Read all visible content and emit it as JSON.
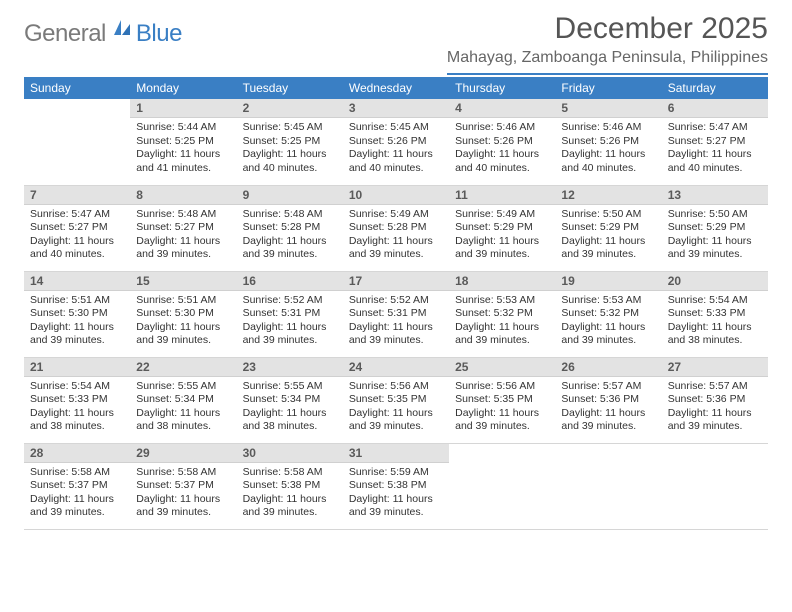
{
  "brand": {
    "name1": "General",
    "name2": "Blue"
  },
  "header": {
    "title": "December 2025",
    "location": "Mahayag, Zamboanga Peninsula, Philippines"
  },
  "colors": {
    "accent": "#3a7fc4",
    "header_text": "#ffffff",
    "body_text": "#333333",
    "muted_text": "#666666",
    "dayrow_bg": "#e3e3e3",
    "border": "#d6d6d6",
    "page_bg": "#ffffff"
  },
  "columns": [
    "Sunday",
    "Monday",
    "Tuesday",
    "Wednesday",
    "Thursday",
    "Friday",
    "Saturday"
  ],
  "weeks": [
    [
      {
        "blank": true
      },
      {
        "n": "1",
        "sr": "5:44 AM",
        "ss": "5:25 PM",
        "dl": "11 hours and 41 minutes."
      },
      {
        "n": "2",
        "sr": "5:45 AM",
        "ss": "5:25 PM",
        "dl": "11 hours and 40 minutes."
      },
      {
        "n": "3",
        "sr": "5:45 AM",
        "ss": "5:26 PM",
        "dl": "11 hours and 40 minutes."
      },
      {
        "n": "4",
        "sr": "5:46 AM",
        "ss": "5:26 PM",
        "dl": "11 hours and 40 minutes."
      },
      {
        "n": "5",
        "sr": "5:46 AM",
        "ss": "5:26 PM",
        "dl": "11 hours and 40 minutes."
      },
      {
        "n": "6",
        "sr": "5:47 AM",
        "ss": "5:27 PM",
        "dl": "11 hours and 40 minutes."
      }
    ],
    [
      {
        "n": "7",
        "sr": "5:47 AM",
        "ss": "5:27 PM",
        "dl": "11 hours and 40 minutes."
      },
      {
        "n": "8",
        "sr": "5:48 AM",
        "ss": "5:27 PM",
        "dl": "11 hours and 39 minutes."
      },
      {
        "n": "9",
        "sr": "5:48 AM",
        "ss": "5:28 PM",
        "dl": "11 hours and 39 minutes."
      },
      {
        "n": "10",
        "sr": "5:49 AM",
        "ss": "5:28 PM",
        "dl": "11 hours and 39 minutes."
      },
      {
        "n": "11",
        "sr": "5:49 AM",
        "ss": "5:29 PM",
        "dl": "11 hours and 39 minutes."
      },
      {
        "n": "12",
        "sr": "5:50 AM",
        "ss": "5:29 PM",
        "dl": "11 hours and 39 minutes."
      },
      {
        "n": "13",
        "sr": "5:50 AM",
        "ss": "5:29 PM",
        "dl": "11 hours and 39 minutes."
      }
    ],
    [
      {
        "n": "14",
        "sr": "5:51 AM",
        "ss": "5:30 PM",
        "dl": "11 hours and 39 minutes."
      },
      {
        "n": "15",
        "sr": "5:51 AM",
        "ss": "5:30 PM",
        "dl": "11 hours and 39 minutes."
      },
      {
        "n": "16",
        "sr": "5:52 AM",
        "ss": "5:31 PM",
        "dl": "11 hours and 39 minutes."
      },
      {
        "n": "17",
        "sr": "5:52 AM",
        "ss": "5:31 PM",
        "dl": "11 hours and 39 minutes."
      },
      {
        "n": "18",
        "sr": "5:53 AM",
        "ss": "5:32 PM",
        "dl": "11 hours and 39 minutes."
      },
      {
        "n": "19",
        "sr": "5:53 AM",
        "ss": "5:32 PM",
        "dl": "11 hours and 39 minutes."
      },
      {
        "n": "20",
        "sr": "5:54 AM",
        "ss": "5:33 PM",
        "dl": "11 hours and 38 minutes."
      }
    ],
    [
      {
        "n": "21",
        "sr": "5:54 AM",
        "ss": "5:33 PM",
        "dl": "11 hours and 38 minutes."
      },
      {
        "n": "22",
        "sr": "5:55 AM",
        "ss": "5:34 PM",
        "dl": "11 hours and 38 minutes."
      },
      {
        "n": "23",
        "sr": "5:55 AM",
        "ss": "5:34 PM",
        "dl": "11 hours and 38 minutes."
      },
      {
        "n": "24",
        "sr": "5:56 AM",
        "ss": "5:35 PM",
        "dl": "11 hours and 39 minutes."
      },
      {
        "n": "25",
        "sr": "5:56 AM",
        "ss": "5:35 PM",
        "dl": "11 hours and 39 minutes."
      },
      {
        "n": "26",
        "sr": "5:57 AM",
        "ss": "5:36 PM",
        "dl": "11 hours and 39 minutes."
      },
      {
        "n": "27",
        "sr": "5:57 AM",
        "ss": "5:36 PM",
        "dl": "11 hours and 39 minutes."
      }
    ],
    [
      {
        "n": "28",
        "sr": "5:58 AM",
        "ss": "5:37 PM",
        "dl": "11 hours and 39 minutes."
      },
      {
        "n": "29",
        "sr": "5:58 AM",
        "ss": "5:37 PM",
        "dl": "11 hours and 39 minutes."
      },
      {
        "n": "30",
        "sr": "5:58 AM",
        "ss": "5:38 PM",
        "dl": "11 hours and 39 minutes."
      },
      {
        "n": "31",
        "sr": "5:59 AM",
        "ss": "5:38 PM",
        "dl": "11 hours and 39 minutes."
      },
      {
        "blank": true
      },
      {
        "blank": true
      },
      {
        "blank": true
      }
    ]
  ],
  "labels": {
    "sunrise": "Sunrise: ",
    "sunset": "Sunset: ",
    "daylight": "Daylight: "
  }
}
